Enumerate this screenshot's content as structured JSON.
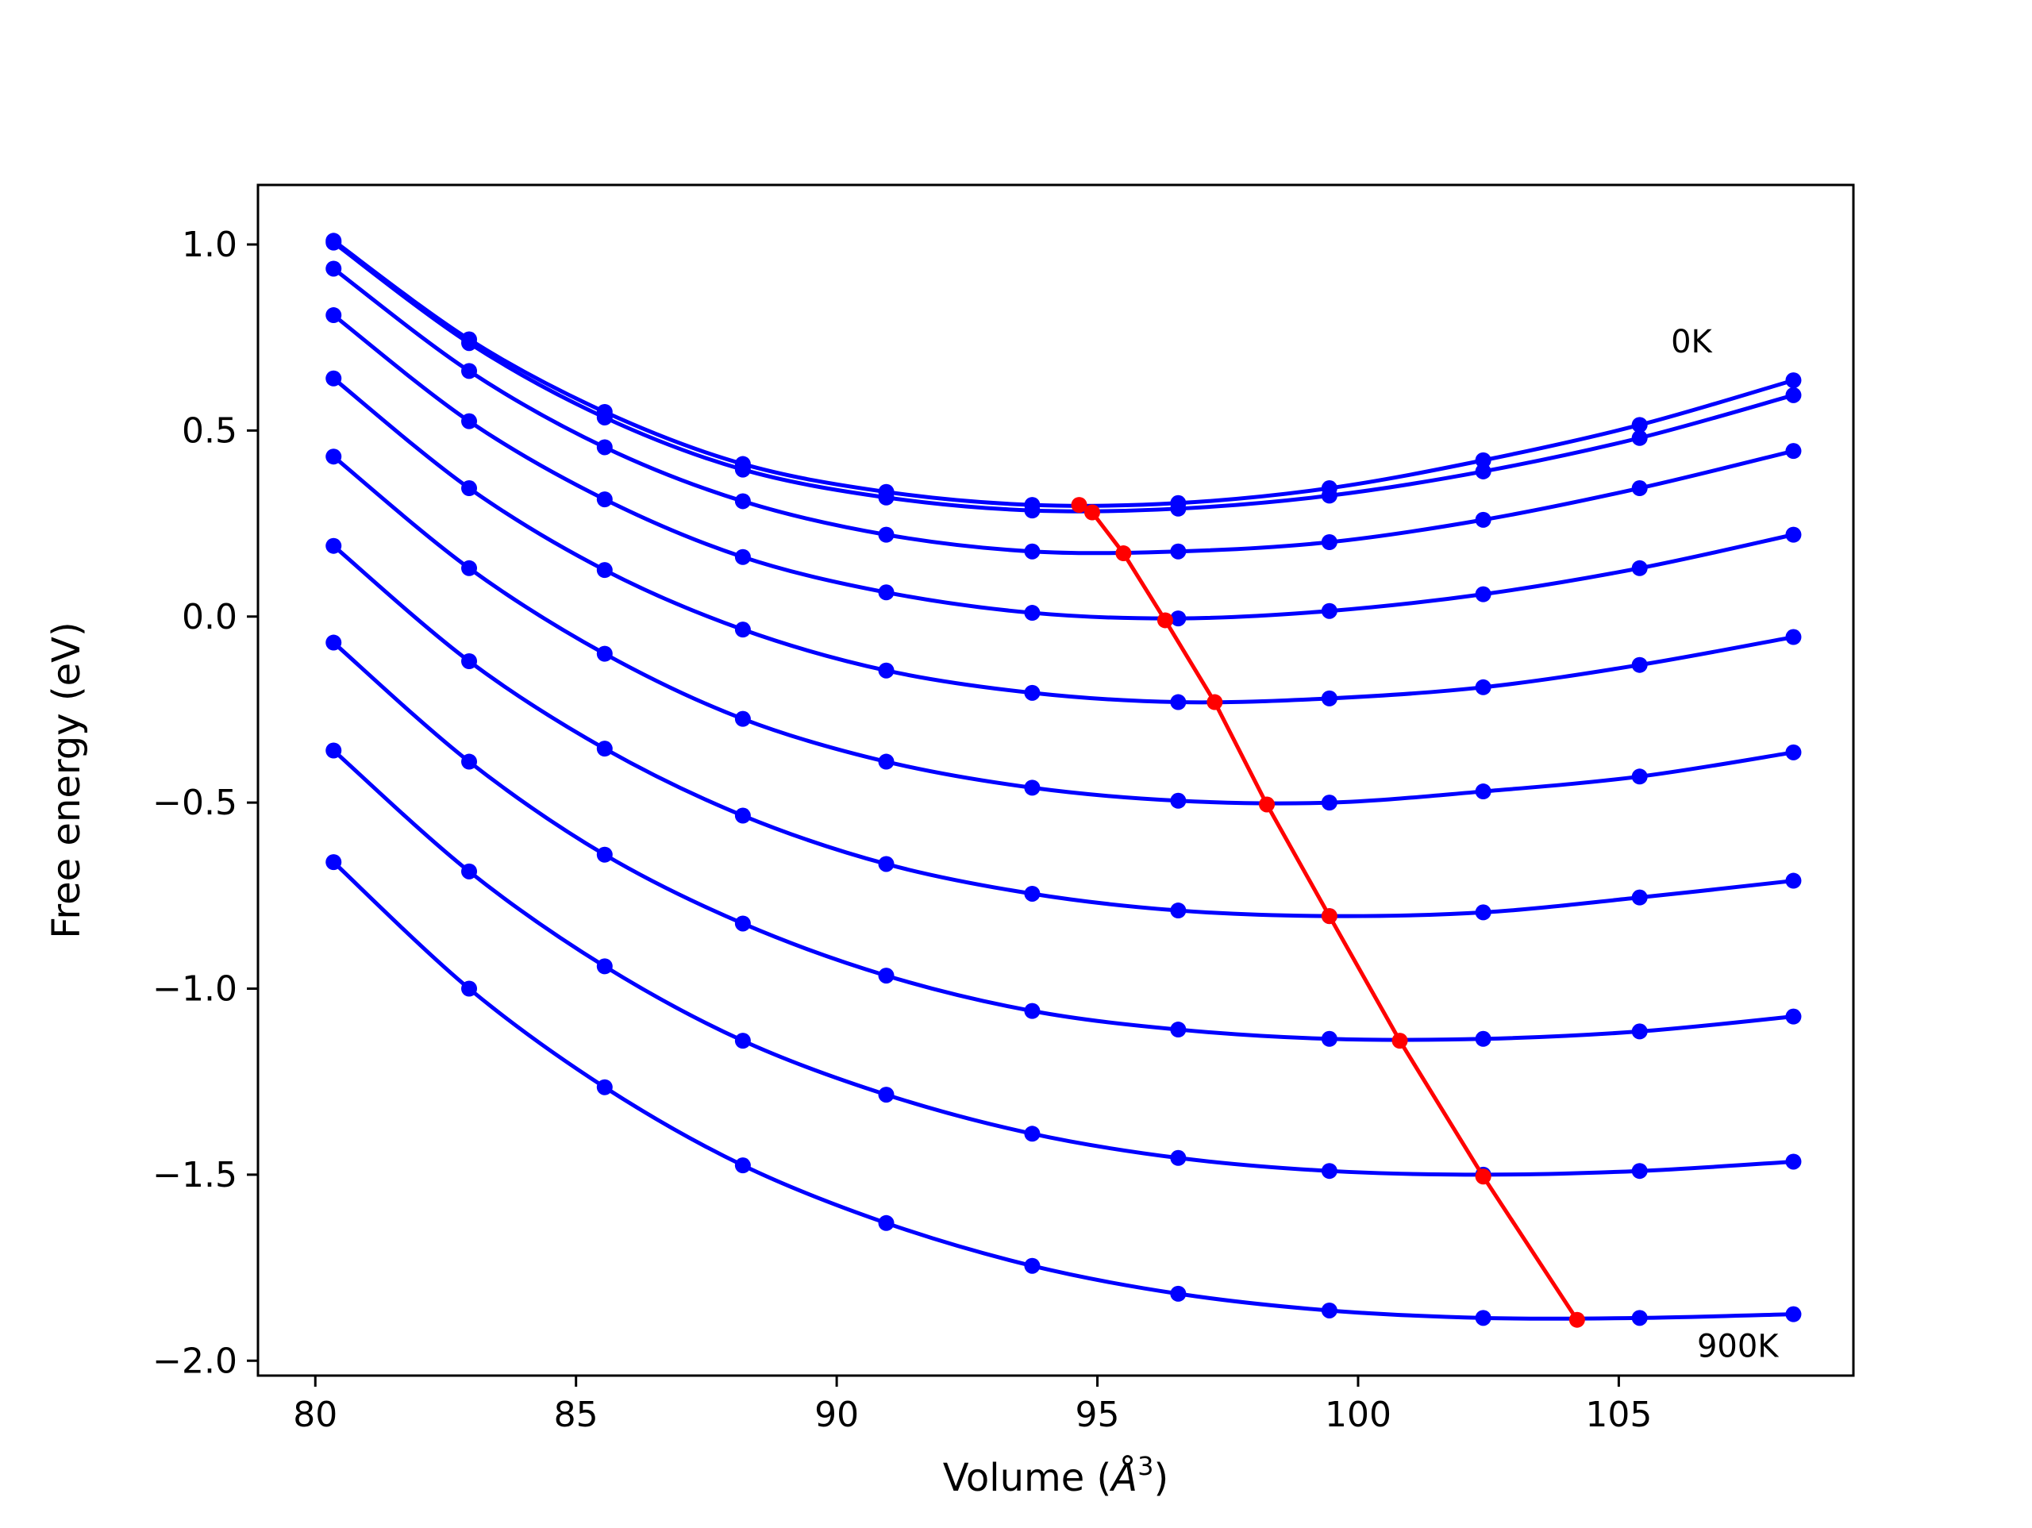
{
  "chart_data": {
    "type": "line",
    "title": "",
    "xlabel_main": "Volume (",
    "xlabel_symbol": "Å",
    "xlabel_power": "3",
    "xlabel_close": ")",
    "ylabel": "Free energy (eV)",
    "xlim": [
      78.9,
      109.5
    ],
    "ylim": [
      -2.04,
      1.16
    ],
    "xticks": [
      80,
      85,
      90,
      95,
      100,
      105
    ],
    "xtick_labels": [
      "80",
      "85",
      "90",
      "95",
      "100",
      "105"
    ],
    "yticks": [
      -2.0,
      -1.5,
      -1.0,
      -0.5,
      0.0,
      0.5,
      1.0
    ],
    "ytick_labels": [
      "−2.0",
      "−1.5",
      "−1.0",
      "−0.5",
      "0.0",
      "0.5",
      "1.0"
    ],
    "grid": false,
    "annotations": [
      {
        "text": "0K",
        "x": 106.0,
        "y": 0.71
      },
      {
        "text": "900K",
        "x": 106.5,
        "y": -1.99
      }
    ],
    "series_color": "#0000ff",
    "minimum_line_color": "#ff0000",
    "x": [
      80.35,
      82.95,
      85.55,
      88.2,
      90.95,
      93.75,
      96.55,
      99.45,
      102.4,
      105.4,
      108.35
    ],
    "series": [
      {
        "values": [
          1.01,
          0.745,
          0.55,
          0.41,
          0.335,
          0.3,
          0.305,
          0.345,
          0.42,
          0.515,
          0.635
        ]
      },
      {
        "values": [
          1.005,
          0.735,
          0.535,
          0.395,
          0.32,
          0.285,
          0.29,
          0.325,
          0.39,
          0.48,
          0.595
        ]
      },
      {
        "values": [
          0.935,
          0.66,
          0.455,
          0.31,
          0.22,
          0.175,
          0.175,
          0.2,
          0.26,
          0.345,
          0.445
        ]
      },
      {
        "values": [
          0.81,
          0.525,
          0.315,
          0.16,
          0.065,
          0.01,
          -0.005,
          0.015,
          0.06,
          0.13,
          0.22
        ]
      },
      {
        "values": [
          0.64,
          0.345,
          0.125,
          -0.035,
          -0.145,
          -0.205,
          -0.23,
          -0.22,
          -0.19,
          -0.13,
          -0.055
        ]
      },
      {
        "values": [
          0.43,
          0.13,
          -0.1,
          -0.275,
          -0.39,
          -0.46,
          -0.495,
          -0.5,
          -0.47,
          -0.43,
          -0.365
        ]
      },
      {
        "values": [
          0.19,
          -0.12,
          -0.355,
          -0.535,
          -0.665,
          -0.745,
          -0.79,
          -0.805,
          -0.795,
          -0.755,
          -0.71
        ]
      },
      {
        "values": [
          -0.07,
          -0.39,
          -0.64,
          -0.825,
          -0.965,
          -1.06,
          -1.11,
          -1.135,
          -1.135,
          -1.115,
          -1.075
        ]
      },
      {
        "values": [
          -0.36,
          -0.685,
          -0.94,
          -1.14,
          -1.285,
          -1.39,
          -1.455,
          -1.49,
          -1.5,
          -1.49,
          -1.465
        ]
      },
      {
        "values": [
          -0.66,
          -1.0,
          -1.265,
          -1.475,
          -1.63,
          -1.745,
          -1.82,
          -1.865,
          -1.885,
          -1.885,
          -1.875
        ]
      }
    ],
    "minimum_line": {
      "x": [
        94.65,
        94.9,
        95.5,
        96.3,
        97.25,
        98.25,
        99.45,
        100.8,
        102.4,
        104.2
      ],
      "y": [
        0.3,
        0.28,
        0.17,
        -0.01,
        -0.23,
        -0.505,
        -0.805,
        -1.14,
        -1.505,
        -1.89
      ]
    }
  }
}
